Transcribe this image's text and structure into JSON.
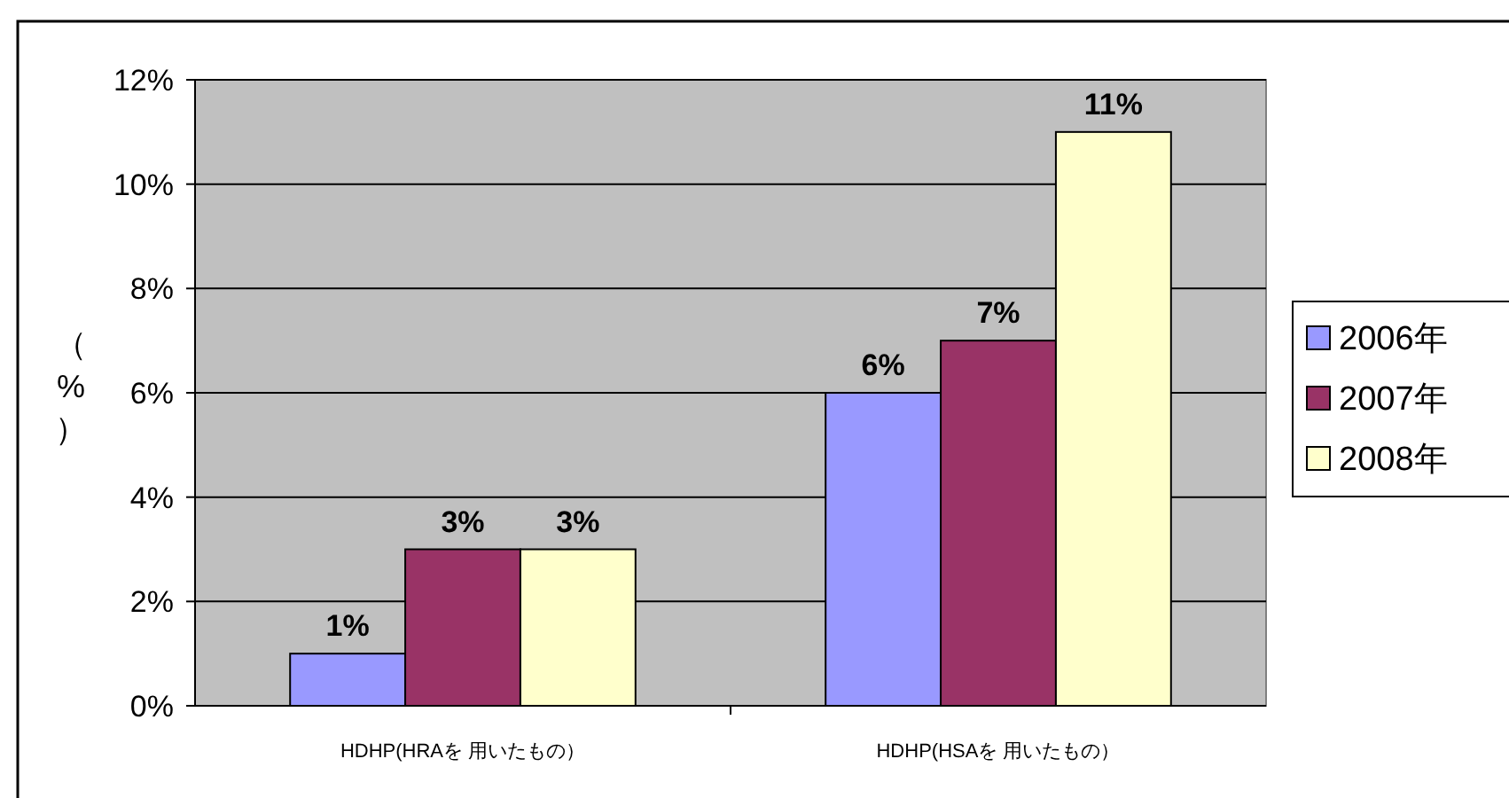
{
  "chart_data": {
    "type": "bar",
    "ylabel": "（%）",
    "categories": [
      "HDHP(HRAを 用いたもの）",
      "HDHP(HSAを 用いたもの）"
    ],
    "series": [
      {
        "name": "2006年",
        "color": "#9999ff",
        "values": [
          1,
          6
        ],
        "value_labels": [
          "1%",
          "6%"
        ]
      },
      {
        "name": "2007年",
        "color": "#993366",
        "values": [
          3,
          7
        ],
        "value_labels": [
          "3%",
          "7%"
        ]
      },
      {
        "name": "2008年",
        "color": "#ffffcc",
        "values": [
          3,
          11
        ],
        "value_labels": [
          "3%",
          "11%"
        ]
      }
    ],
    "ylim": [
      0,
      12
    ],
    "yticks": [
      {
        "value": 0,
        "label": "0%"
      },
      {
        "value": 2,
        "label": "2%"
      },
      {
        "value": 4,
        "label": "4%"
      },
      {
        "value": 6,
        "label": "6%"
      },
      {
        "value": 8,
        "label": "8%"
      },
      {
        "value": 10,
        "label": "10%"
      },
      {
        "value": 12,
        "label": "12%"
      }
    ],
    "grid": "y",
    "legend": "right"
  }
}
